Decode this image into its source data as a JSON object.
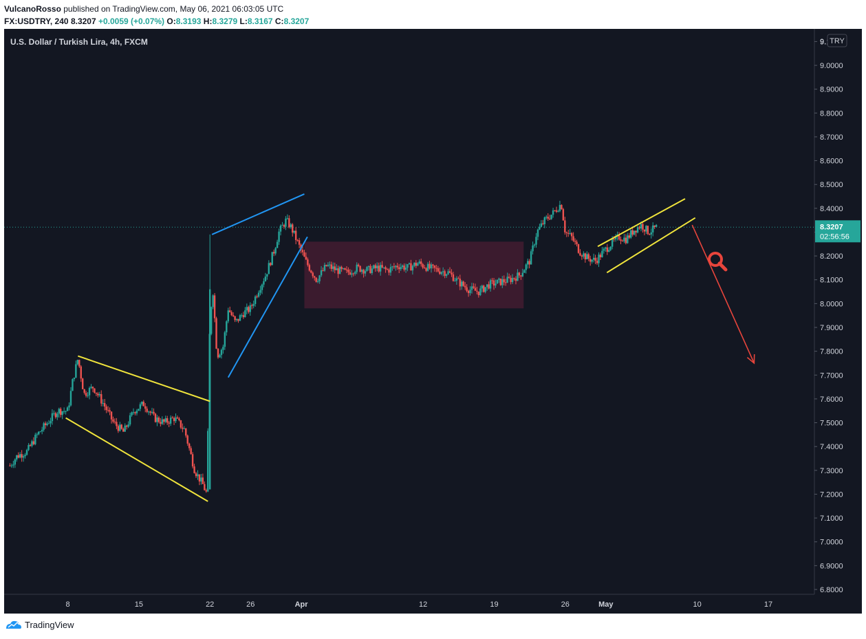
{
  "header": {
    "author": "VulcanoRosso",
    "published": "published on TradingView.com, May 06, 2021 06:03:05 UTC"
  },
  "quote": {
    "symbol": "FX:USDTRY, 240",
    "last": "8.3207",
    "change": "+0.0059 (+0.07%)",
    "open_label": "O:",
    "open": "8.3193",
    "high_label": "H:",
    "high": "8.3279",
    "low_label": "L:",
    "low": "8.3167",
    "close_label": "C:",
    "close": "8.3207"
  },
  "chart_title": "U.S. Dollar / Turkish Lira, 4h, FXCM",
  "currency_badge": "TRY",
  "price_tag": {
    "price": "8.3207",
    "countdown": "02:56:56"
  },
  "footer": {
    "brand": "TradingView",
    "logo_icon": "tradingview-logo-icon"
  },
  "colors": {
    "bg": "#131722",
    "up": "#26a69a",
    "down": "#ef5350",
    "yellow": "#f0e43c",
    "blue": "#2196f3",
    "red": "#e8453c",
    "zone": "#4a1e33"
  },
  "chart_data": {
    "type": "candlestick",
    "title": "U.S. Dollar / Turkish Lira, 4h, FXCM",
    "ylim": [
      6.76,
      9.2
    ],
    "y_ticks": [
      "9.1000",
      "9.0000",
      "8.9000",
      "8.8000",
      "8.7000",
      "8.6000",
      "8.5000",
      "8.4000",
      "8.3000",
      "8.2000",
      "8.1000",
      "8.0000",
      "7.9000",
      "7.8000",
      "7.7000",
      "7.6000",
      "7.5000",
      "7.4000",
      "7.3000",
      "7.2000",
      "7.1000",
      "7.0000",
      "6.9000",
      "6.8000"
    ],
    "y_top_tick": "9.",
    "x_ticks": [
      {
        "label": "8",
        "day": 8
      },
      {
        "label": "15",
        "day": 15
      },
      {
        "label": "22",
        "day": 22
      },
      {
        "label": "26",
        "day": 26
      },
      {
        "label": "Apr",
        "day": 31
      },
      {
        "label": "12",
        "day": 43
      },
      {
        "label": "19",
        "day": 50
      },
      {
        "label": "26",
        "day": 57
      },
      {
        "label": "May",
        "day": 61
      },
      {
        "label": "10",
        "day": 70
      },
      {
        "label": "17",
        "day": 77
      }
    ],
    "x_range_days": [
      2,
      81
    ],
    "last_price": 8.3207,
    "series": [
      {
        "day": 2.3,
        "v": 7.32
      },
      {
        "day": 3,
        "v": 7.36
      },
      {
        "day": 4,
        "v": 7.38
      },
      {
        "day": 5,
        "v": 7.45
      },
      {
        "day": 6,
        "v": 7.5
      },
      {
        "day": 7,
        "v": 7.55
      },
      {
        "day": 8,
        "v": 7.55
      },
      {
        "day": 8.5,
        "v": 7.68
      },
      {
        "day": 9,
        "v": 7.77
      },
      {
        "day": 9.6,
        "v": 7.62
      },
      {
        "day": 10.5,
        "v": 7.65
      },
      {
        "day": 11.5,
        "v": 7.58
      },
      {
        "day": 12.5,
        "v": 7.5
      },
      {
        "day": 13.5,
        "v": 7.46
      },
      {
        "day": 14.5,
        "v": 7.55
      },
      {
        "day": 15.5,
        "v": 7.58
      },
      {
        "day": 16.5,
        "v": 7.52
      },
      {
        "day": 17.5,
        "v": 7.5
      },
      {
        "day": 18.5,
        "v": 7.52
      },
      {
        "day": 19.5,
        "v": 7.47
      },
      {
        "day": 20.5,
        "v": 7.3
      },
      {
        "day": 21.3,
        "v": 7.24
      },
      {
        "day": 21.7,
        "v": 7.2
      },
      {
        "day": 22,
        "v": 7.95
      },
      {
        "day": 22.3,
        "v": 8.05
      },
      {
        "day": 22.7,
        "v": 7.78
      },
      {
        "day": 23.3,
        "v": 7.82
      },
      {
        "day": 23.8,
        "v": 7.98
      },
      {
        "day": 24.5,
        "v": 7.92
      },
      {
        "day": 25.3,
        "v": 7.96
      },
      {
        "day": 26,
        "v": 7.98
      },
      {
        "day": 26.8,
        "v": 8.06
      },
      {
        "day": 27.5,
        "v": 8.12
      },
      {
        "day": 28.3,
        "v": 8.22
      },
      {
        "day": 28.8,
        "v": 8.3
      },
      {
        "day": 29.5,
        "v": 8.35
      },
      {
        "day": 30,
        "v": 8.32
      },
      {
        "day": 30.6,
        "v": 8.26
      },
      {
        "day": 31.4,
        "v": 8.18
      },
      {
        "day": 32.5,
        "v": 8.1
      },
      {
        "day": 33.5,
        "v": 8.16
      },
      {
        "day": 34.5,
        "v": 8.14
      },
      {
        "day": 35.5,
        "v": 8.13
      },
      {
        "day": 36.5,
        "v": 8.15
      },
      {
        "day": 37.5,
        "v": 8.14
      },
      {
        "day": 38.5,
        "v": 8.15
      },
      {
        "day": 39.5,
        "v": 8.14
      },
      {
        "day": 40.5,
        "v": 8.16
      },
      {
        "day": 41.5,
        "v": 8.15
      },
      {
        "day": 42.5,
        "v": 8.17
      },
      {
        "day": 43.5,
        "v": 8.15
      },
      {
        "day": 44.5,
        "v": 8.14
      },
      {
        "day": 45.5,
        "v": 8.13
      },
      {
        "day": 46.5,
        "v": 8.09
      },
      {
        "day": 47.5,
        "v": 8.06
      },
      {
        "day": 48.5,
        "v": 8.05
      },
      {
        "day": 49.5,
        "v": 8.08
      },
      {
        "day": 50.5,
        "v": 8.09
      },
      {
        "day": 51.5,
        "v": 8.1
      },
      {
        "day": 52.5,
        "v": 8.12
      },
      {
        "day": 53.5,
        "v": 8.18
      },
      {
        "day": 54.2,
        "v": 8.3
      },
      {
        "day": 55,
        "v": 8.35
      },
      {
        "day": 55.8,
        "v": 8.38
      },
      {
        "day": 56.6,
        "v": 8.42
      },
      {
        "day": 57,
        "v": 8.3
      },
      {
        "day": 57.6,
        "v": 8.28
      },
      {
        "day": 58.4,
        "v": 8.22
      },
      {
        "day": 59.2,
        "v": 8.19
      },
      {
        "day": 60,
        "v": 8.18
      },
      {
        "day": 60.8,
        "v": 8.22
      },
      {
        "day": 61.5,
        "v": 8.25
      },
      {
        "day": 62.3,
        "v": 8.28
      },
      {
        "day": 63,
        "v": 8.27
      },
      {
        "day": 63.8,
        "v": 8.31
      },
      {
        "day": 64.5,
        "v": 8.33
      },
      {
        "day": 65.2,
        "v": 8.3
      },
      {
        "day": 66,
        "v": 8.32
      }
    ],
    "annotations": {
      "yellow_lines": [
        {
          "x1": 9,
          "y1": 7.78,
          "x2": 22,
          "y2": 7.59
        },
        {
          "x1": 7.8,
          "y1": 7.52,
          "x2": 21.8,
          "y2": 7.17
        },
        {
          "x1": 60.2,
          "y1": 8.24,
          "x2": 68.8,
          "y2": 8.44
        },
        {
          "x1": 61.1,
          "y1": 8.13,
          "x2": 69.8,
          "y2": 8.36
        }
      ],
      "blue_lines": [
        {
          "x1": 22.2,
          "y1": 8.29,
          "x2": 31.3,
          "y2": 8.46
        },
        {
          "x1": 23.8,
          "y1": 7.69,
          "x2": 31.6,
          "y2": 8.28
        }
      ],
      "zone": {
        "x1": 31.3,
        "x2": 52.9,
        "y1": 7.98,
        "y2": 8.26
      },
      "red_arrow": {
        "x1": 69.5,
        "y1": 8.33,
        "x2": 75.6,
        "y2": 7.75
      }
    }
  }
}
